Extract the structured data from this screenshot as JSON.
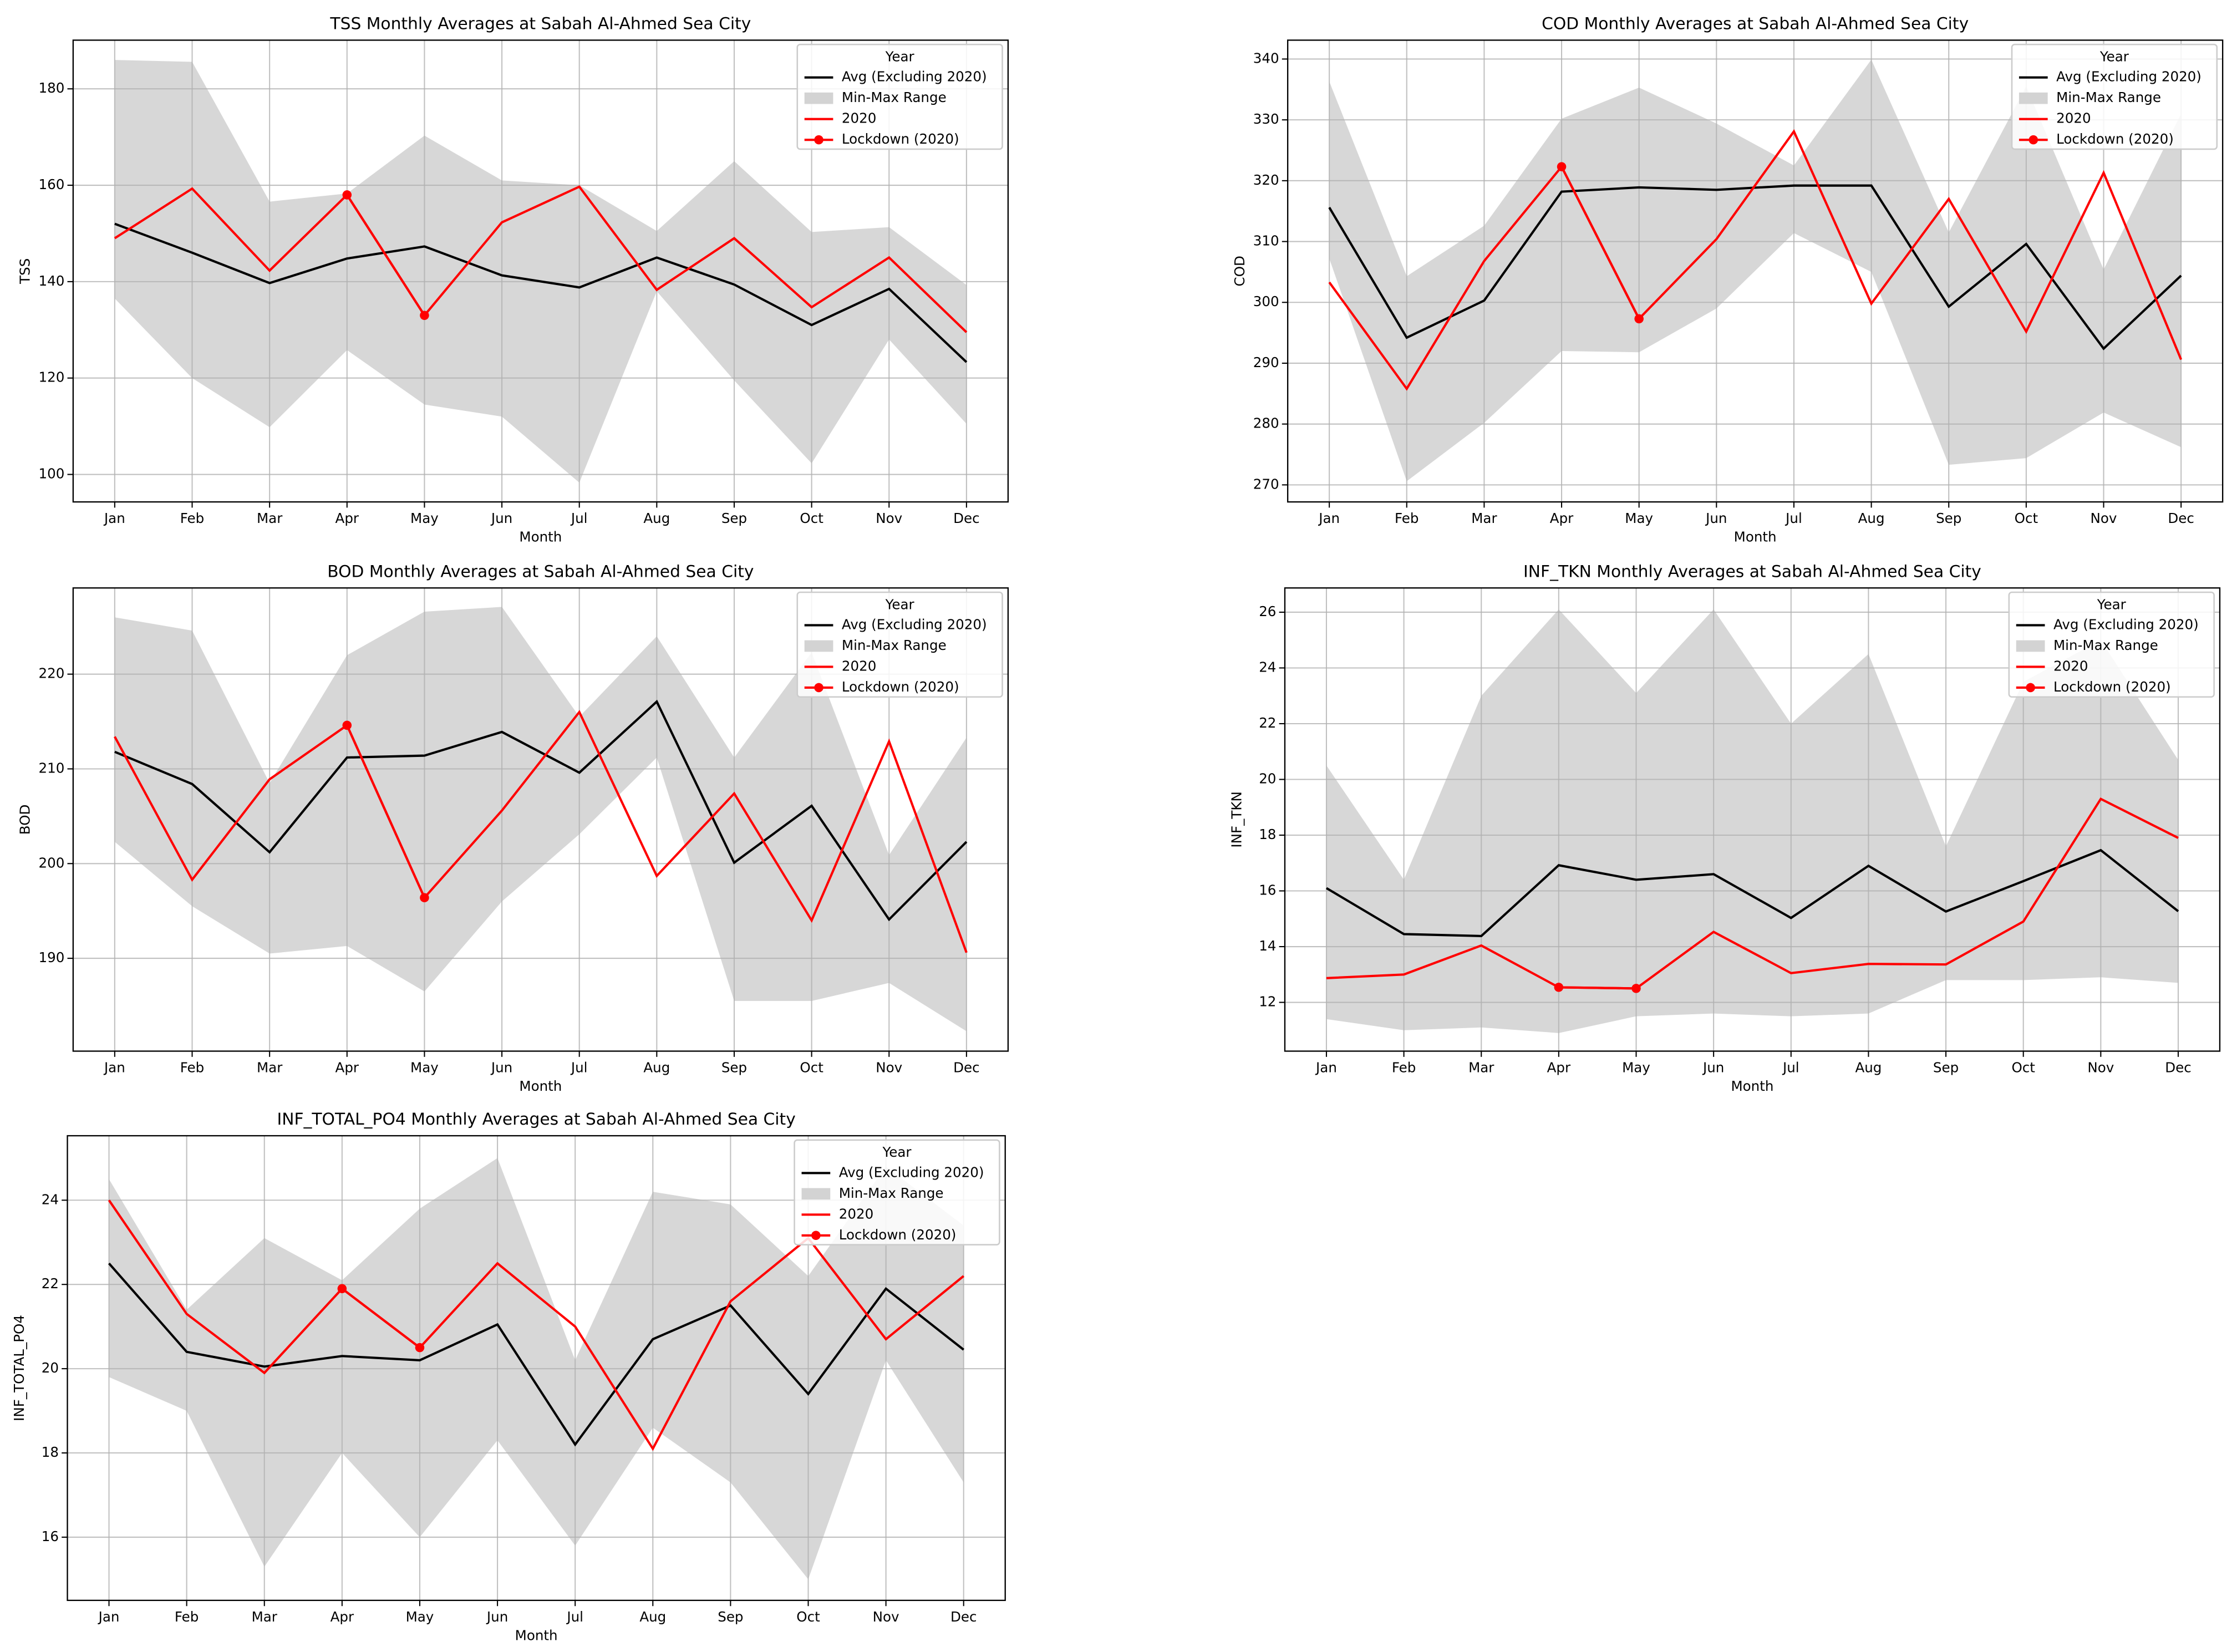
{
  "chart_data": [
    {
      "type": "line",
      "title": "TSS Monthly Averages at Sabah Al-Ahmed Sea City",
      "xlabel": "Month",
      "ylabel": "TSS",
      "categories": [
        "Jan",
        "Feb",
        "Mar",
        "Apr",
        "May",
        "Jun",
        "Jul",
        "Aug",
        "Sep",
        "Oct",
        "Nov",
        "Dec"
      ],
      "ylim": [
        94.3,
        190.1
      ],
      "yticks": [
        100,
        120,
        140,
        160,
        180
      ],
      "grid": true,
      "legend": "upper right",
      "legend_title": "Year",
      "series": [
        {
          "name": "Avg (Excluding 2020)",
          "color": "#000000",
          "values": [
            152,
            146,
            139.7,
            144.8,
            147.3,
            141.3,
            138.8,
            145,
            139.4,
            131,
            138.5,
            123.3
          ]
        },
        {
          "name": "Min-Max Range",
          "color": "#d3d3d3",
          "type": "area",
          "lower": [
            136.5,
            120,
            109.8,
            125.8,
            114.5,
            112,
            98.3,
            138,
            119.5,
            102.3,
            128,
            110.5
          ],
          "upper": [
            186,
            185.6,
            156.6,
            158.3,
            170.3,
            161,
            160,
            150.5,
            165,
            150.3,
            151.3,
            139.3
          ]
        },
        {
          "name": "2020",
          "color": "#ff0000",
          "values": [
            149,
            159.3,
            142.3,
            158,
            133,
            152.3,
            159.7,
            138.3,
            149,
            134.7,
            145,
            129.5
          ]
        },
        {
          "name": "Lockdown (2020)",
          "color": "#ff0000",
          "marker": true,
          "values": [
            null,
            null,
            null,
            158,
            133,
            null,
            null,
            null,
            null,
            null,
            null,
            null
          ]
        }
      ]
    },
    {
      "type": "line",
      "title": "COD Monthly Averages at Sabah Al-Ahmed Sea City",
      "xlabel": "Month",
      "ylabel": "COD",
      "categories": [
        "Jan",
        "Feb",
        "Mar",
        "Apr",
        "May",
        "Jun",
        "Jul",
        "Aug",
        "Sep",
        "Oct",
        "Nov",
        "Dec"
      ],
      "ylim": [
        267.2,
        343.1
      ],
      "yticks": [
        270,
        280,
        290,
        300,
        310,
        320,
        330,
        340
      ],
      "grid": true,
      "legend": "upper right",
      "legend_title": "Year",
      "series": [
        {
          "name": "Avg (Excluding 2020)",
          "color": "#000000",
          "values": [
            315.6,
            294.2,
            300.3,
            318.2,
            318.9,
            318.5,
            319.2,
            319.2,
            299.3,
            309.6,
            292.4,
            304.4
          ]
        },
        {
          "name": "Min-Max Range",
          "color": "#d3d3d3",
          "type": "area",
          "lower": [
            307.2,
            270.6,
            280.2,
            292,
            291.8,
            299,
            311.4,
            305,
            273.3,
            274.4,
            281.9,
            276.2
          ],
          "upper": [
            336.3,
            304.3,
            312.6,
            330.2,
            335.3,
            329.4,
            322.5,
            339.9,
            311.5,
            335.5,
            305.4,
            331
          ]
        },
        {
          "name": "2020",
          "color": "#ff0000",
          "values": [
            303.3,
            285.8,
            306.8,
            322.3,
            297.3,
            310.4,
            328.1,
            299.8,
            317,
            295.2,
            321.3,
            290.6
          ]
        },
        {
          "name": "Lockdown (2020)",
          "color": "#ff0000",
          "marker": true,
          "values": [
            null,
            null,
            null,
            322.3,
            297.3,
            null,
            null,
            null,
            null,
            null,
            null,
            null
          ]
        }
      ]
    },
    {
      "type": "line",
      "title": "BOD Monthly Averages at Sabah Al-Ahmed Sea City",
      "xlabel": "Month",
      "ylabel": "BOD",
      "categories": [
        "Jan",
        "Feb",
        "Mar",
        "Apr",
        "May",
        "Jun",
        "Jul",
        "Aug",
        "Sep",
        "Oct",
        "Nov",
        "Dec"
      ],
      "ylim": [
        180.2,
        229.1
      ],
      "yticks": [
        190,
        200,
        210,
        220
      ],
      "grid": true,
      "legend": "upper right",
      "legend_title": "Year",
      "series": [
        {
          "name": "Avg (Excluding 2020)",
          "color": "#000000",
          "values": [
            211.8,
            208.4,
            201.2,
            211.2,
            211.4,
            213.9,
            209.6,
            217.1,
            200.1,
            206.1,
            194.1,
            202.3
          ]
        },
        {
          "name": "Min-Max Range",
          "color": "#d3d3d3",
          "type": "area",
          "lower": [
            202.3,
            195.5,
            190.5,
            191.3,
            186.5,
            196,
            203.1,
            211.2,
            185.5,
            185.5,
            187.4,
            182.3
          ],
          "upper": [
            226,
            224.6,
            208.5,
            222,
            226.6,
            227.1,
            215.5,
            224,
            211.2,
            222.3,
            200.9,
            213.3
          ]
        },
        {
          "name": "2020",
          "color": "#ff0000",
          "values": [
            213.4,
            198.3,
            208.9,
            214.6,
            196.4,
            205.6,
            216,
            198.7,
            207.4,
            194,
            212.9,
            190.6
          ]
        },
        {
          "name": "Lockdown (2020)",
          "color": "#ff0000",
          "marker": true,
          "values": [
            null,
            null,
            null,
            214.6,
            196.4,
            null,
            null,
            null,
            null,
            null,
            null,
            null
          ]
        }
      ]
    },
    {
      "type": "line",
      "title": "INF_TKN Monthly Averages at Sabah Al-Ahmed Sea City",
      "xlabel": "Month",
      "ylabel": "INF_TKN",
      "categories": [
        "Jan",
        "Feb",
        "Mar",
        "Apr",
        "May",
        "Jun",
        "Jul",
        "Aug",
        "Sep",
        "Oct",
        "Nov",
        "Dec"
      ],
      "ylim": [
        10.25,
        26.87
      ],
      "yticks": [
        12,
        14,
        16,
        18,
        20,
        22,
        24,
        26
      ],
      "grid": true,
      "legend": "upper right",
      "legend_title": "Year",
      "series": [
        {
          "name": "Avg (Excluding 2020)",
          "color": "#000000",
          "values": [
            16.1,
            14.45,
            14.38,
            16.92,
            16.4,
            16.6,
            15.03,
            16.9,
            15.26,
            16.35,
            17.46,
            15.27
          ]
        },
        {
          "name": "Min-Max Range",
          "color": "#d3d3d3",
          "type": "area",
          "lower": [
            11.4,
            11,
            11.1,
            10.9,
            11.5,
            11.6,
            11.5,
            11.6,
            12.8,
            12.8,
            12.9,
            12.7
          ],
          "upper": [
            20.5,
            16.4,
            23,
            26.1,
            23.1,
            26.1,
            22,
            24.5,
            17.6,
            23.5,
            25,
            20.7
          ]
        },
        {
          "name": "2020",
          "color": "#ff0000",
          "values": [
            12.87,
            13,
            14.04,
            12.54,
            12.5,
            14.53,
            13.05,
            13.38,
            13.36,
            14.9,
            19.3,
            17.9
          ]
        },
        {
          "name": "Lockdown (2020)",
          "color": "#ff0000",
          "marker": true,
          "values": [
            null,
            null,
            null,
            12.54,
            12.5,
            null,
            null,
            null,
            null,
            null,
            null,
            null
          ]
        }
      ]
    },
    {
      "type": "line",
      "title": "INF_TOTAL_PO4 Monthly Averages at Sabah Al-Ahmed Sea City",
      "xlabel": "Month",
      "ylabel": "INF_TOTAL_PO4",
      "categories": [
        "Jan",
        "Feb",
        "Mar",
        "Apr",
        "May",
        "Jun",
        "Jul",
        "Aug",
        "Sep",
        "Oct",
        "Nov",
        "Dec"
      ],
      "ylim": [
        14.5,
        25.53
      ],
      "yticks": [
        16,
        18,
        20,
        22,
        24
      ],
      "grid": true,
      "legend": "upper right",
      "legend_title": "Year",
      "series": [
        {
          "name": "Avg (Excluding 2020)",
          "color": "#000000",
          "values": [
            22.5,
            20.4,
            20.05,
            20.3,
            20.2,
            21.05,
            18.2,
            20.7,
            21.5,
            19.4,
            21.9,
            20.45
          ]
        },
        {
          "name": "Min-Max Range",
          "color": "#d3d3d3",
          "type": "area",
          "lower": [
            19.8,
            19,
            15.3,
            18,
            16,
            18.3,
            15.8,
            18.6,
            17.3,
            15,
            20.2,
            17.3
          ],
          "upper": [
            24.5,
            21.4,
            23.1,
            22.1,
            23.8,
            25,
            20.2,
            24.2,
            23.9,
            22.2,
            24.8,
            23.4
          ]
        },
        {
          "name": "2020",
          "color": "#ff0000",
          "values": [
            24,
            21.3,
            19.9,
            21.9,
            20.5,
            22.5,
            21,
            18.1,
            21.6,
            23.1,
            20.7,
            22.2
          ]
        },
        {
          "name": "Lockdown (2020)",
          "color": "#ff0000",
          "marker": true,
          "values": [
            null,
            null,
            null,
            21.9,
            20.5,
            null,
            null,
            null,
            null,
            null,
            null,
            null
          ]
        }
      ]
    }
  ]
}
